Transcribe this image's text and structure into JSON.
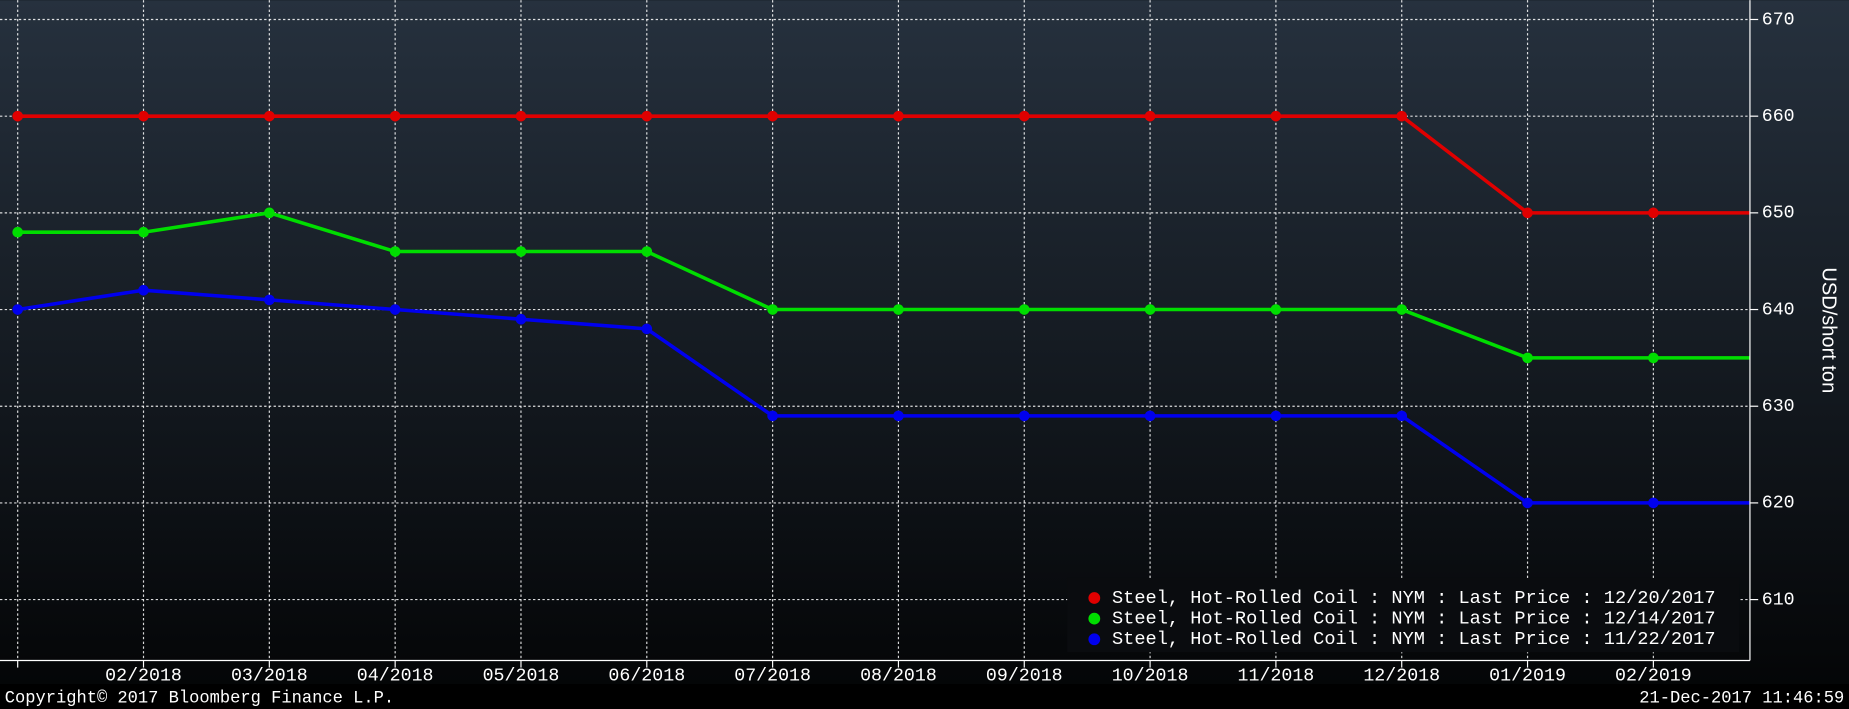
{
  "chart_data": {
    "type": "line",
    "y_label": "USD/short ton",
    "categories": [
      null,
      "02/2018",
      "03/2018",
      "04/2018",
      "05/2018",
      "06/2018",
      "07/2018",
      "08/2018",
      "09/2018",
      "10/2018",
      "11/2018",
      "12/2018",
      "01/2019",
      "02/2019",
      null
    ],
    "series": [
      {
        "name": "Steel, Hot-Rolled Coil : NYM : Last Price : 12/20/2017",
        "color": "#e00000",
        "values": [
          660,
          660,
          660,
          660,
          660,
          660,
          660,
          660,
          660,
          660,
          660,
          660,
          650,
          650,
          650
        ]
      },
      {
        "name": "Steel, Hot-Rolled Coil : NYM : Last Price : 12/14/2017",
        "color": "#00dd00",
        "values": [
          648,
          648,
          650,
          646,
          646,
          646,
          640,
          640,
          640,
          640,
          640,
          640,
          635,
          635,
          635
        ]
      },
      {
        "name": "Steel, Hot-Rolled Coil : NYM : Last Price : 11/22/2017",
        "color": "#0000ee",
        "values": [
          640,
          642,
          641,
          640,
          639,
          638,
          629,
          629,
          629,
          629,
          629,
          629,
          620,
          620,
          620
        ]
      }
    ],
    "ylim": [
      603.7,
      672
    ],
    "yticks": [
      610,
      620,
      630,
      640,
      650,
      660,
      670
    ],
    "grid": true,
    "legend": "lower right",
    "footnote": "Copyright© 2017 Bloomberg Finance L.P.",
    "timestamp": "21-Dec-2017 11:46:59"
  }
}
